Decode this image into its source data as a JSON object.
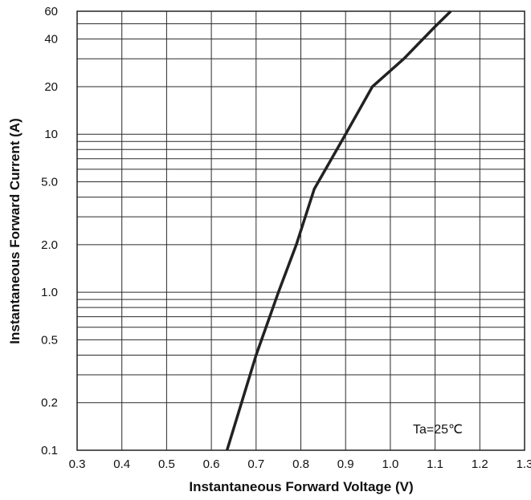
{
  "chart_data": {
    "type": "line",
    "title": "",
    "xlabel": "Instantaneous Forward Voltage (V)",
    "ylabel": "Instantaneous Forward Current (A)",
    "xlim": [
      0.3,
      1.3
    ],
    "ylim": [
      0.1,
      60
    ],
    "yscale": "log",
    "grid": true,
    "x_ticks": [
      0.3,
      0.4,
      0.5,
      0.6,
      0.7,
      0.8,
      0.9,
      1.0,
      1.1,
      1.2,
      1.3
    ],
    "x_tick_labels": [
      "0.3",
      "0.4",
      "0.5",
      "0.6",
      "0.7",
      "0.8",
      "0.9",
      "1.0",
      "1.1",
      "1.2",
      "1.3"
    ],
    "y_ticks": [
      0.1,
      0.2,
      0.5,
      1,
      2,
      5,
      10,
      20,
      40,
      60
    ],
    "y_tick_labels": [
      "0.1",
      "0.2",
      "0.5",
      "1.0",
      "2.0",
      "5.0",
      "10",
      "20",
      "40",
      "60"
    ],
    "y_gridlines": [
      0.1,
      0.2,
      0.3,
      0.4,
      0.5,
      0.6,
      0.7,
      0.8,
      0.9,
      1,
      2,
      3,
      4,
      5,
      6,
      7,
      8,
      9,
      10,
      20,
      30,
      40,
      50,
      60
    ],
    "series": [
      {
        "x": [
          0.635,
          0.7,
          0.75,
          0.79,
          0.83,
          0.9,
          0.96,
          1.03,
          1.1,
          1.135
        ],
        "y": [
          0.1,
          0.4,
          1.0,
          2.0,
          4.5,
          10,
          20,
          30,
          48,
          60
        ]
      }
    ],
    "annotation": "Ta=25℃"
  }
}
